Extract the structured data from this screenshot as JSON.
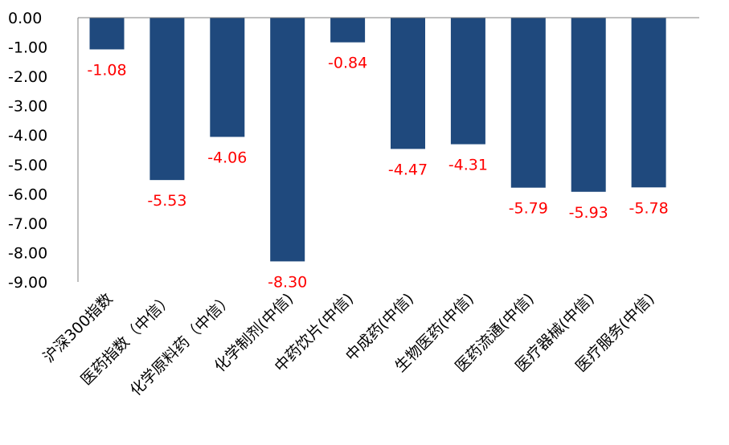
{
  "chart_data": {
    "type": "bar",
    "title": "",
    "xlabel": "",
    "ylabel": "",
    "categories": [
      "沪深300指数",
      "医药指数（中信）",
      "化学原料药（中信）",
      "化学制剂(中信)",
      "中药饮片(中信)",
      "中成药(中信)",
      "生物医药(中信)",
      "医药流通(中信)",
      "医疗器械(中信)",
      "医疗服务(中信)"
    ],
    "values": [
      -1.08,
      -5.53,
      -4.06,
      -8.3,
      -0.84,
      -4.47,
      -4.31,
      -5.79,
      -5.93,
      -5.78
    ],
    "data_labels": [
      "-1.08",
      "-5.53",
      "-4.06",
      "-8.30",
      "-0.84",
      "-4.47",
      "-4.31",
      "-5.79",
      "-5.93",
      "-5.78"
    ],
    "ylim": [
      -9,
      0
    ],
    "yticks": [
      "0.00",
      "-1.00",
      "-2.00",
      "-3.00",
      "-4.00",
      "-5.00",
      "-6.00",
      "-7.00",
      "-8.00",
      "-9.00"
    ],
    "grid": false,
    "legend": "none",
    "bar_color": "#1F497D",
    "label_color": "#FF0000",
    "axis_color": "#808080"
  }
}
